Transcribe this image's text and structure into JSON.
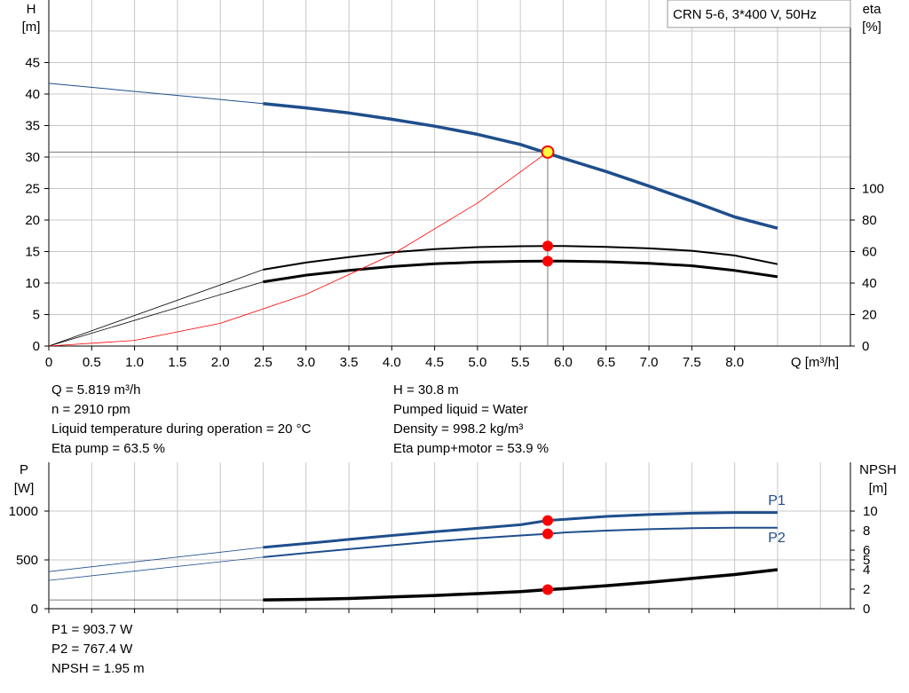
{
  "chart_data": [
    {
      "type": "line",
      "title": "CRN 5-6, 3*400 V, 50Hz",
      "xlabel": "Q [m³/h]",
      "ylabel_left": "H [m]",
      "ylabel_right": "eta [%]",
      "xlim": [
        0,
        9
      ],
      "ylim_left": [
        0,
        50
      ],
      "ylim_right": [
        0,
        100
      ],
      "x_ticks": [
        "0",
        "0.5",
        "1.0",
        "1.5",
        "2.0",
        "2.5",
        "3.0",
        "3.5",
        "4.0",
        "4.5",
        "5.0",
        "5.5",
        "6.0",
        "6.5",
        "7.0",
        "7.5",
        "8.0"
      ],
      "y_ticks_left": [
        "0",
        "5",
        "10",
        "15",
        "20",
        "25",
        "30",
        "35",
        "40",
        "45"
      ],
      "y_ticks_right": [
        "0",
        "20",
        "40",
        "60",
        "80",
        "100"
      ],
      "series": [
        {
          "axis": "left",
          "role": "H",
          "x": [
            0,
            2.5,
            3,
            3.5,
            4,
            4.5,
            5,
            5.5,
            6,
            6.5,
            7,
            7.5,
            8,
            8.5
          ],
          "values": [
            41.7,
            38.5,
            37.8,
            37.0,
            36.0,
            34.9,
            33.6,
            32.0,
            29.8,
            27.7,
            25.4,
            23.0,
            20.5,
            18.7
          ]
        },
        {
          "axis": "right",
          "role": "eta_pump",
          "x": [
            0,
            2.5,
            3,
            3.5,
            4,
            4.5,
            5,
            5.5,
            5.819,
            6,
            6.5,
            7,
            7.5,
            8,
            8.5
          ],
          "values": [
            0,
            48.5,
            53,
            56.5,
            59.5,
            61.5,
            62.8,
            63.4,
            63.5,
            63.5,
            63.0,
            62.0,
            60.5,
            57.5,
            52.0
          ]
        },
        {
          "axis": "right",
          "role": "eta_pump_motor",
          "x": [
            0,
            2.5,
            3,
            3.5,
            4,
            4.5,
            5,
            5.5,
            5.819,
            6,
            6.5,
            7,
            7.5,
            8,
            8.5
          ],
          "values": [
            0,
            40.8,
            45.0,
            48.0,
            50.5,
            52.2,
            53.3,
            53.8,
            53.9,
            53.9,
            53.5,
            52.5,
            51.0,
            48.0,
            44.0
          ]
        },
        {
          "axis": "left",
          "role": "system_curve",
          "x": [
            0,
            1,
            2,
            3,
            4,
            5,
            5.819
          ],
          "values": [
            0,
            0.9,
            3.6,
            8.2,
            14.5,
            22.7,
            30.8
          ]
        }
      ],
      "operating_point": {
        "x": 5.819,
        "y": 30.8
      },
      "grid": true
    },
    {
      "type": "line",
      "ylabel_left": "P [W]",
      "ylabel_right": "NPSH [m]",
      "xlim": [
        0,
        9
      ],
      "ylim_left": [
        0,
        1100
      ],
      "ylim_right": [
        0,
        11
      ],
      "y_ticks_left": [
        "0",
        "500",
        "1000"
      ],
      "y_ticks_right": [
        "0",
        "2",
        "4",
        "5",
        "6",
        "8",
        "10"
      ],
      "series": [
        {
          "name": "P1",
          "axis": "left",
          "x": [
            0,
            2.5,
            3,
            3.5,
            4,
            4.5,
            5,
            5.5,
            5.819,
            6,
            6.5,
            7,
            7.5,
            8,
            8.5
          ],
          "values": [
            380,
            628,
            668,
            710,
            750,
            788,
            824,
            860,
            903.7,
            915,
            945,
            965,
            978,
            985,
            985
          ]
        },
        {
          "name": "P2",
          "axis": "left",
          "x": [
            0,
            2.5,
            3,
            3.5,
            4,
            4.5,
            5,
            5.5,
            5.819,
            6,
            6.5,
            7,
            7.5,
            8,
            8.5
          ],
          "values": [
            290,
            528,
            570,
            610,
            650,
            688,
            722,
            750,
            767.4,
            780,
            800,
            815,
            825,
            830,
            830
          ]
        },
        {
          "axis": "right",
          "role": "NPSH",
          "x": [
            0,
            2.5,
            3,
            3.5,
            4,
            4.5,
            5,
            5.5,
            5.819,
            6,
            6.5,
            7,
            7.5,
            8,
            8.5
          ],
          "values": [
            0.9,
            0.9,
            0.95,
            1.05,
            1.2,
            1.35,
            1.55,
            1.75,
            1.95,
            2.05,
            2.35,
            2.7,
            3.1,
            3.5,
            4.0
          ]
        }
      ],
      "operating_points": [
        {
          "x": 5.819,
          "axis": "left",
          "y": 903.7
        },
        {
          "x": 5.819,
          "axis": "left",
          "y": 767.4
        },
        {
          "x": 5.819,
          "axis": "right",
          "y": 1.95
        }
      ],
      "grid": true
    }
  ],
  "info_top": {
    "q": "Q = 5.819 m³/h",
    "n": "n = 2910 rpm",
    "liquid_temp": "Liquid temperature during operation = 20 °C",
    "eta_pump": "Eta pump = 63.5 %",
    "h": "H = 30.8 m",
    "pumped_liquid": "Pumped liquid = Water",
    "density": "Density = 998.2 kg/m³",
    "eta_pump_motor": "Eta pump+motor = 53.9 %"
  },
  "info_bottom": {
    "p1": "P1 = 903.7 W",
    "p2": "P2 = 767.4 W",
    "npsh": "NPSH = 1.95 m"
  },
  "colors": {
    "head_curve": "#1f4e8c",
    "efficiency_curves": "#000000",
    "system_curve": "#ff0000",
    "marker": "#ff0000",
    "grid": "#c8c8c8"
  }
}
